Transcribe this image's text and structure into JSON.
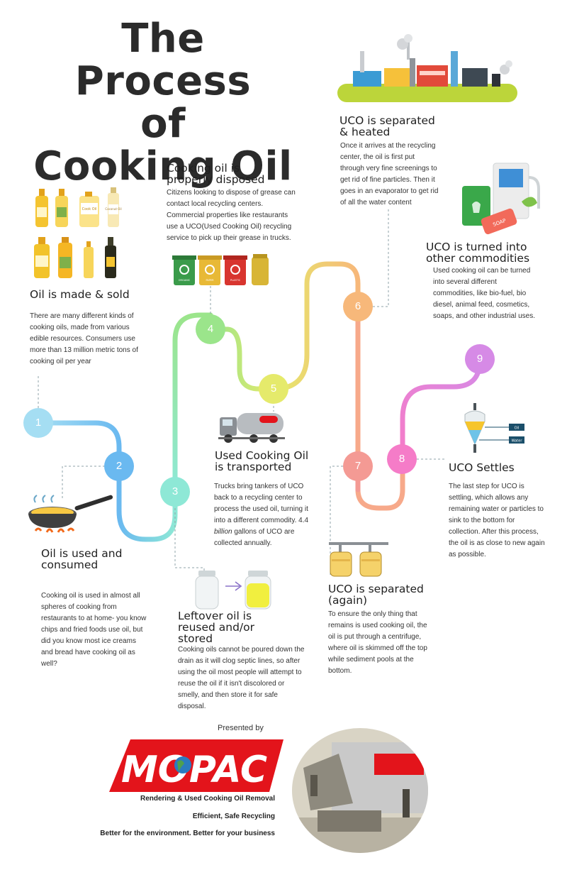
{
  "title": {
    "line1": "The Process",
    "line2": "of",
    "line3": "Cooking Oil"
  },
  "steps": [
    {
      "number": "1",
      "heading": "Oil is made & sold",
      "text": "There are many different kinds of cooking oils, made from various edible resources. Consumers use more than 13 million metric tons of cooking oil per year"
    },
    {
      "number": "2",
      "heading_line1": "Oil is used and",
      "heading_line2": "consumed",
      "text": "Cooking oil is used in almost all spheres of cooking from restaurants to at home- you know chips and fried foods use oil, but did you know most ice creams and bread have cooking oil as well?"
    },
    {
      "number": "3",
      "heading_line1": "Leftover oil is",
      "heading_line2": "reused and/or",
      "heading_line3": "stored",
      "text": "Cooking oils cannot be poured down the drain as it will clog septic lines, so after using the oil most people will attempt to reuse the oil if it isn't discolored or smelly, and then store it for safe disposal."
    },
    {
      "number": "4",
      "heading_line1": "Cooking oil is",
      "heading_line2": "properly disposed",
      "text": "Citizens looking to dispose of grease can contact local recycling centers. Commercial properties like restaurants use a UCO(Used Cooking Oil) recycling service to pick up their grease in trucks."
    },
    {
      "number": "5",
      "heading_line1": "Used Cooking Oil",
      "heading_line2": "is transported",
      "text_a": "Trucks bring tankers of UCO back to a recycling center to process the used oil, turning it into a different commodity. 4.4 ",
      "text_em": "billion",
      "text_b": " gallons of UCO are collected annually."
    },
    {
      "number": "6",
      "heading_line1": "UCO is separated",
      "heading_line2": "& heated",
      "text": "Once it arrives at the recycling center, the oil is first put through very fine screenings to get rid of fine particles. Then it goes in an evaporator to get rid of all the water content"
    },
    {
      "number": "7",
      "heading_line1": "UCO is separated",
      "heading_line2": "(again)",
      "text": "To ensure the only thing that remains is used cooking oil, the oil is put through a centrifuge, where oil is skimmed off the top while sediment pools at the bottom."
    },
    {
      "number": "8",
      "heading": "UCO Settles",
      "text": "The last step for UCO is settling, which allows any remaining water or particles to sink to the bottom for collection. After this process, the oil is as close to new again as possible."
    },
    {
      "number": "9",
      "heading_line1": "UCO is turned into",
      "heading_line2": "other commodities",
      "text": "Used cooking oil can be turned into several different commodities, like bio-fuel, bio diesel,  animal feed, cosmetics, soaps, and other industrial uses."
    }
  ],
  "settling_labels": {
    "oil": "Oil",
    "water": "Water"
  },
  "bottle_labels": [
    "Cook Oil",
    "Coconut Oil"
  ],
  "bin_labels": [
    "ORGANIC",
    "PAPER",
    "PLASTIC"
  ],
  "soap_label": "SOAP",
  "footer": {
    "presented_by": "Presented by",
    "logo_text": "MOPAC",
    "tagline1": "Rendering &  Used Cooking Oil Removal",
    "tagline2": "Efficient, Safe Recycling",
    "tagline3": "Better for the environment. Better for your business"
  },
  "colors": {
    "node1": "#a5def3",
    "node2": "#6ab9f0",
    "node3": "#8ee8d6",
    "node4": "#9be58b",
    "node5": "#e5ea6b",
    "node6": "#f7b87a",
    "node7": "#f49a94",
    "node8": "#f57cc8",
    "node9": "#d68ae6",
    "brand_red": "#e3141b"
  }
}
